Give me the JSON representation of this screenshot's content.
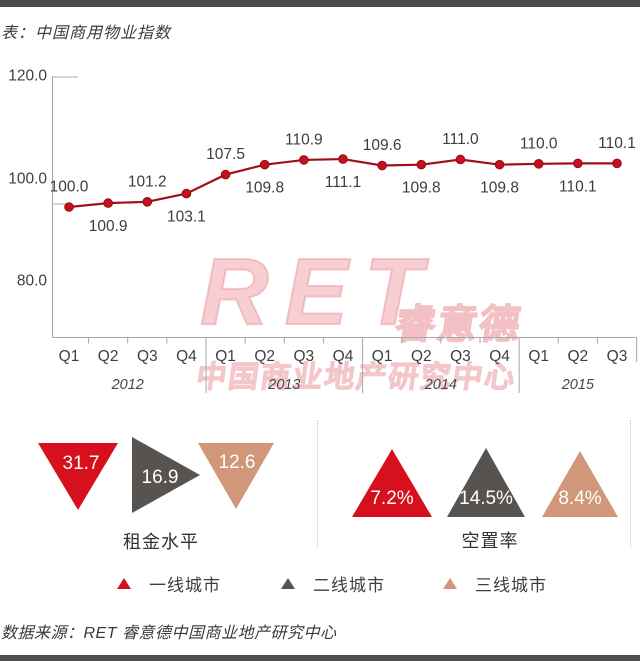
{
  "page": {
    "title": "表：中国商用物业指数",
    "source": "数据来源：RET 睿意德中国商业地产研究中心"
  },
  "chart_data": {
    "type": "line",
    "title": "中国商用物业指数",
    "series": [
      {
        "name": "中国商用物业指数",
        "values": [
          100.0,
          100.9,
          101.2,
          103.1,
          107.5,
          109.8,
          110.9,
          111.1,
          109.6,
          109.8,
          111.0,
          109.8,
          110.0,
          110.1,
          110.1
        ]
      }
    ],
    "x_labels": [
      "Q1",
      "Q2",
      "Q3",
      "Q4",
      "Q1",
      "Q2",
      "Q3",
      "Q4",
      "Q1",
      "Q2",
      "Q3",
      "Q4",
      "Q1",
      "Q2",
      "Q3"
    ],
    "year_groups": [
      {
        "label": "2012",
        "count": 4
      },
      {
        "label": "2013",
        "count": 4
      },
      {
        "label": "2014",
        "count": 4
      },
      {
        "label": "2015",
        "count": 3
      }
    ],
    "y_ticks": [
      "120.0",
      "100.0",
      "80.0"
    ],
    "ylim": [
      80,
      120
    ],
    "grid": false,
    "legend_position": "none",
    "label_positions": [
      "above",
      "below",
      "above",
      "below",
      "above",
      "below",
      "above",
      "below",
      "above",
      "below",
      "above",
      "below",
      "above",
      "below",
      "above"
    ],
    "line_color": "#9e111b",
    "marker_color": "#c6101e"
  },
  "watermark": {
    "logo": "RET",
    "brand": "睿意德",
    "subtitle": "中国商业地产研究中心"
  },
  "metrics": {
    "rent": {
      "caption": "租金水平",
      "items": [
        {
          "tier": "一线城市",
          "value": "31.7",
          "direction": "down",
          "color": "#d6101c"
        },
        {
          "tier": "二线城市",
          "value": "16.9",
          "direction": "right",
          "color": "#575350"
        },
        {
          "tier": "三线城市",
          "value": "12.6",
          "direction": "down",
          "color": "#d0977a"
        }
      ]
    },
    "vacancy": {
      "caption": "空置率",
      "items": [
        {
          "tier": "一线城市",
          "value": "7.2%",
          "direction": "up",
          "color": "#d6101c"
        },
        {
          "tier": "二线城市",
          "value": "14.5%",
          "direction": "up",
          "color": "#575350"
        },
        {
          "tier": "三线城市",
          "value": "8.4%",
          "direction": "up",
          "color": "#d0977a"
        }
      ]
    }
  },
  "legend": {
    "items": [
      {
        "label": "一线城市",
        "color": "#d6101c"
      },
      {
        "label": "二线城市",
        "color": "#575350"
      },
      {
        "label": "三线城市",
        "color": "#d0977a"
      }
    ]
  },
  "colors": {
    "accent_red": "#d6101c",
    "dark_gray": "#575350",
    "tan": "#d0977a",
    "frame_bar": "#4d4a4a",
    "watermark_pink": "#ef9aa0"
  }
}
